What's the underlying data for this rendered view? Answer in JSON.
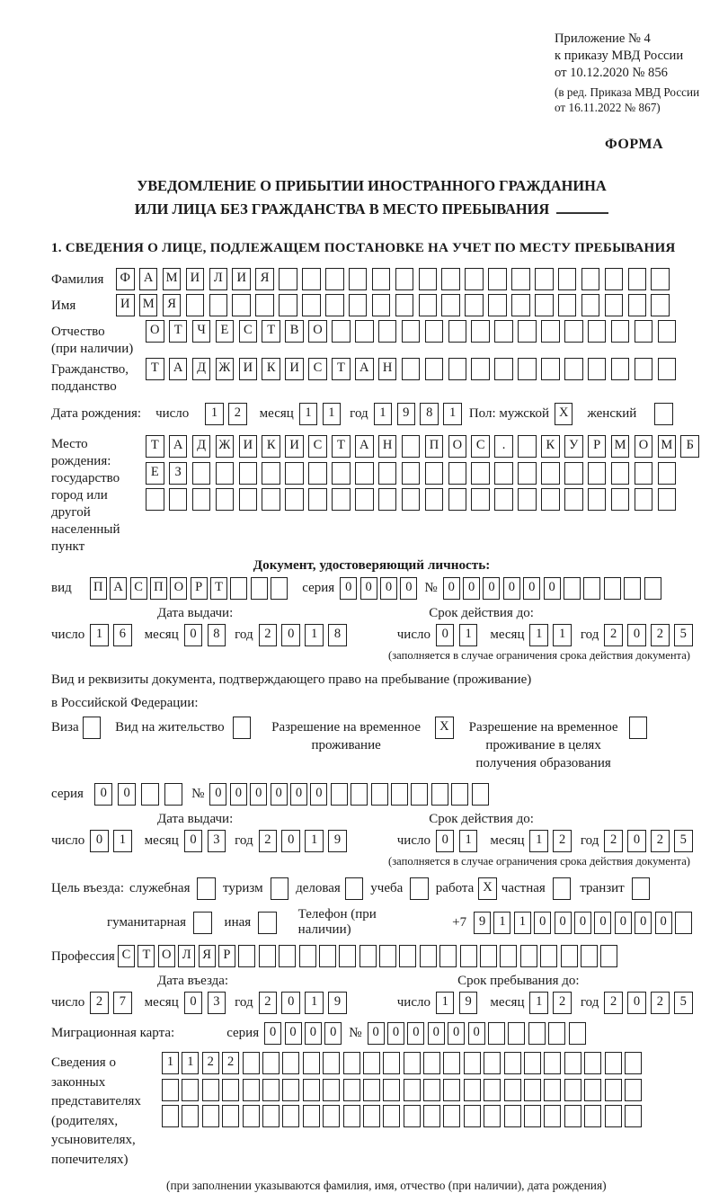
{
  "header": {
    "ref_lines": [
      "Приложение № 4",
      "к приказу МВД России",
      "от 10.12.2020 № 856"
    ],
    "amend_lines": [
      "(в ред. Приказа МВД России",
      "от 16.11.2022 № 867)"
    ],
    "form_label": "ФОРМА"
  },
  "title": {
    "line1": "УВЕДОМЛЕНИЕ О ПРИБЫТИИ ИНОСТРАННОГО ГРАЖДАНИНА",
    "line2": "ИЛИ ЛИЦА БЕЗ ГРАЖДАНСТВА В МЕСТО ПРЕБЫВАНИЯ"
  },
  "section1_heading": "1. СВЕДЕНИЯ О ЛИЦЕ, ПОДЛЕЖАЩЕМ ПОСТАНОВКЕ НА УЧЕТ ПО МЕСТУ ПРЕБЫВАНИЯ",
  "labels": {
    "day": "число",
    "month": "месяц",
    "year": "год",
    "series": "серия",
    "number": "№"
  },
  "person": {
    "surname": {
      "label": "Фамилия",
      "cells": {
        "filled": "ФАМИЛИЯ",
        "total": 24
      }
    },
    "name": {
      "label": "Имя",
      "cells": {
        "filled": "ИМЯ",
        "total": 24
      }
    },
    "patronymic": {
      "label": "Отчество",
      "label2": "(при наличии)",
      "cells": {
        "filled": "ОТЧЕСТВО",
        "total": 23
      }
    },
    "citizenship": {
      "label": "Гражданство,",
      "label2": "подданство",
      "cells": {
        "filled": "ТАДЖИКИСТАН",
        "total": 23
      }
    },
    "birth_date": {
      "label": "Дата рождения:",
      "day": "12",
      "month": "11",
      "year": "1981"
    },
    "sex": {
      "label": "Пол:",
      "male_label": "мужской",
      "male": {
        "filled": "X",
        "total": 1
      },
      "female_label": "женский",
      "female": {
        "filled": "",
        "total": 1
      }
    },
    "birth_place": {
      "label": "Место рождения:",
      "sub1": "государство",
      "sub2": "город или другой",
      "sub3": "населенный пункт",
      "row1": {
        "filled": "ТАДЖИКИСТАН ПОС. КУРМОМБ",
        "total": 24
      },
      "row2": {
        "filled": "ЕЗ",
        "total": 23
      },
      "row3": {
        "filled": "",
        "total": 23
      }
    }
  },
  "identity_doc": {
    "heading": "Документ, удостоверяющий личность:",
    "kind_label": "вид",
    "kind": {
      "filled": "ПАСПОРТ",
      "total": 10
    },
    "series": {
      "filled": "0000",
      "total": 4
    },
    "number": {
      "filled": "000000",
      "total": 11
    },
    "issue": {
      "heading": "Дата выдачи:",
      "day": "16",
      "month": "08",
      "year": "2018"
    },
    "valid": {
      "heading": "Срок действия до:",
      "day": "01",
      "month": "11",
      "year": "2025"
    },
    "note": "(заполняется в случае ограничения срока действия документа)"
  },
  "residence_doc": {
    "intro1": "Вид и реквизиты документа, подтверждающего право на пребывание (проживание)",
    "intro2": "в Российской Федерации:",
    "options": [
      {
        "label": "Виза",
        "checked": ""
      },
      {
        "label": "Вид на жительство",
        "checked": ""
      },
      {
        "label": "Разрешение на временное проживание",
        "checked": "X"
      },
      {
        "label": "Разрешение на временное проживание в целях получения образования",
        "checked": ""
      }
    ],
    "series": {
      "filled": "00",
      "total": 4
    },
    "number": {
      "filled": "000000",
      "total": 14
    },
    "issue": {
      "heading": "Дата выдачи:",
      "day": "01",
      "month": "03",
      "year": "2019"
    },
    "valid": {
      "heading": "Срок действия до:",
      "day": "01",
      "month": "12",
      "year": "2025"
    },
    "note": "(заполняется в случае ограничения срока действия документа)"
  },
  "visit": {
    "label": "Цель въезда:",
    "purposes_line1": [
      {
        "label": "служебная",
        "checked": ""
      },
      {
        "label": "туризм",
        "checked": ""
      },
      {
        "label": "деловая",
        "checked": ""
      },
      {
        "label": "учеба",
        "checked": ""
      },
      {
        "label": "работа",
        "checked": "X"
      },
      {
        "label": "частная",
        "checked": ""
      },
      {
        "label": "транзит",
        "checked": ""
      }
    ],
    "purposes_line2": [
      {
        "label": "гуманитарная",
        "checked": ""
      },
      {
        "label": "иная",
        "checked": ""
      }
    ],
    "phone_label": "Телефон (при наличии)",
    "phone_prefix": "+7",
    "phone": {
      "filled": "9110000000",
      "total": 11
    }
  },
  "profession": {
    "label": "Профессия",
    "cells": {
      "filled": "СТОЛЯР",
      "total": 25
    }
  },
  "entry": {
    "issue": {
      "heading": "Дата въезда:",
      "day": "27",
      "month": "03",
      "year": "2019"
    },
    "valid": {
      "heading": "Срок пребывания до:",
      "day": "19",
      "month": "12",
      "year": "2025"
    }
  },
  "migration_card": {
    "label": "Миграционная карта:",
    "series": {
      "filled": "0000",
      "total": 4
    },
    "number": {
      "filled": "000000",
      "total": 11
    }
  },
  "representatives": {
    "label_lines": [
      "Сведения о",
      "законных",
      "представителях",
      "(родителях,",
      "усыновителях,",
      "попечителях)"
    ],
    "row1": {
      "filled": "1122",
      "total": 24
    },
    "row2": {
      "filled": "",
      "total": 24
    },
    "row3": {
      "filled": "",
      "total": 24
    },
    "note": "(при заполнении указываются фамилия, имя, отчество (при наличии), дата рождения)"
  }
}
